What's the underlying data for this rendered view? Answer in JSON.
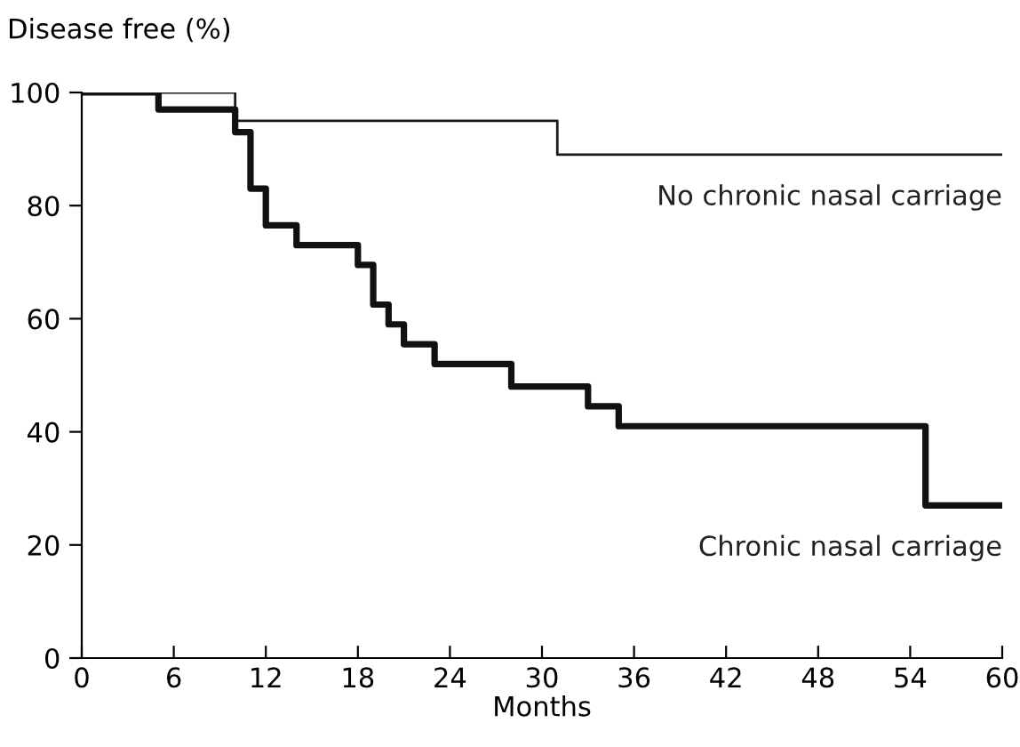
{
  "chart_data": {
    "type": "step",
    "ylabel": "Disease free (%)",
    "xlabel": "Months",
    "xlim": [
      0,
      60
    ],
    "xticks": [
      0,
      6,
      12,
      18,
      24,
      30,
      36,
      42,
      48,
      54,
      60
    ],
    "ylim": [
      0,
      100
    ],
    "yticks": [
      0,
      20,
      40,
      60,
      80,
      100
    ],
    "grid": false,
    "legend": false,
    "marker": "none",
    "line_style": "solid",
    "series": [
      {
        "name": "No chronic nasal carriage",
        "color": "#1a1a1a",
        "x": [
          0,
          10,
          31,
          60
        ],
        "values": [
          100,
          95,
          89,
          89
        ]
      },
      {
        "name": "Chronic nasal carriage",
        "color": "#111111",
        "x": [
          0,
          5,
          10,
          11,
          12,
          14,
          18,
          19,
          20,
          21,
          23,
          28,
          33,
          35,
          55,
          60
        ],
        "values": [
          100,
          97,
          93,
          83,
          76.5,
          73,
          69.5,
          62.5,
          59,
          55.5,
          52,
          48,
          44.5,
          41,
          27,
          27
        ]
      }
    ]
  }
}
